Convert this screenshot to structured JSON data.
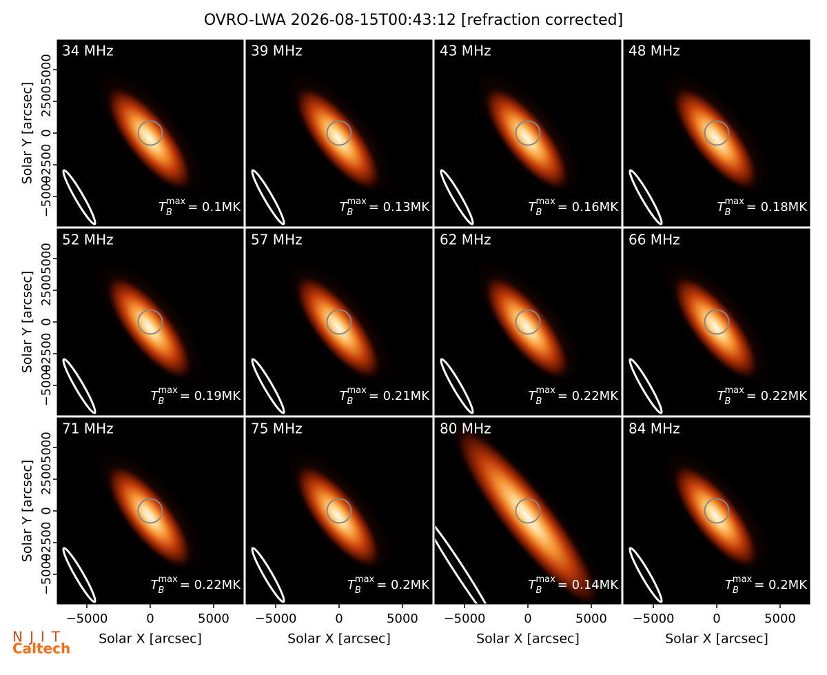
{
  "chart_data": {
    "type": "image-grid",
    "title": "OVRO-LWA 2026-08-15T00:43:12 [refraction corrected]",
    "xlabel": "Solar X [arcsec]",
    "ylabel": "Solar Y [arcsec]",
    "xlim": [
      -7340,
      7340
    ],
    "ylim": [
      -7340,
      7340
    ],
    "xticks": [
      {
        "value": -5000,
        "label": "−5000"
      },
      0,
      5000
    ],
    "yticks": [
      {
        "value": -5000,
        "label": "−5000"
      },
      {
        "value": -2500,
        "label": "−2500"
      },
      0,
      2500,
      5000
    ],
    "tb_symbol": "T",
    "tb_sub": "B",
    "tb_sup": "max",
    "panels": [
      {
        "label": "34 MHz",
        "annotation": "= 0.1MK"
      },
      {
        "label": "39 MHz",
        "annotation": "= 0.13MK"
      },
      {
        "label": "43 MHz",
        "annotation": "= 0.16MK"
      },
      {
        "label": "48 MHz",
        "annotation": "= 0.18MK"
      },
      {
        "label": "52 MHz",
        "annotation": "= 0.19MK"
      },
      {
        "label": "57 MHz",
        "annotation": "= 0.21MK"
      },
      {
        "label": "62 MHz",
        "annotation": "= 0.22MK"
      },
      {
        "label": "66 MHz",
        "annotation": "= 0.22MK"
      },
      {
        "label": "71 MHz",
        "annotation": "= 0.22MK"
      },
      {
        "label": "75 MHz",
        "annotation": "= 0.2MK"
      },
      {
        "label": "80 MHz",
        "annotation": "= 0.14MK"
      },
      {
        "label": "84 MHz",
        "annotation": "= 0.2MK"
      }
    ],
    "logos": [
      "NJIT",
      "Caltech"
    ]
  }
}
